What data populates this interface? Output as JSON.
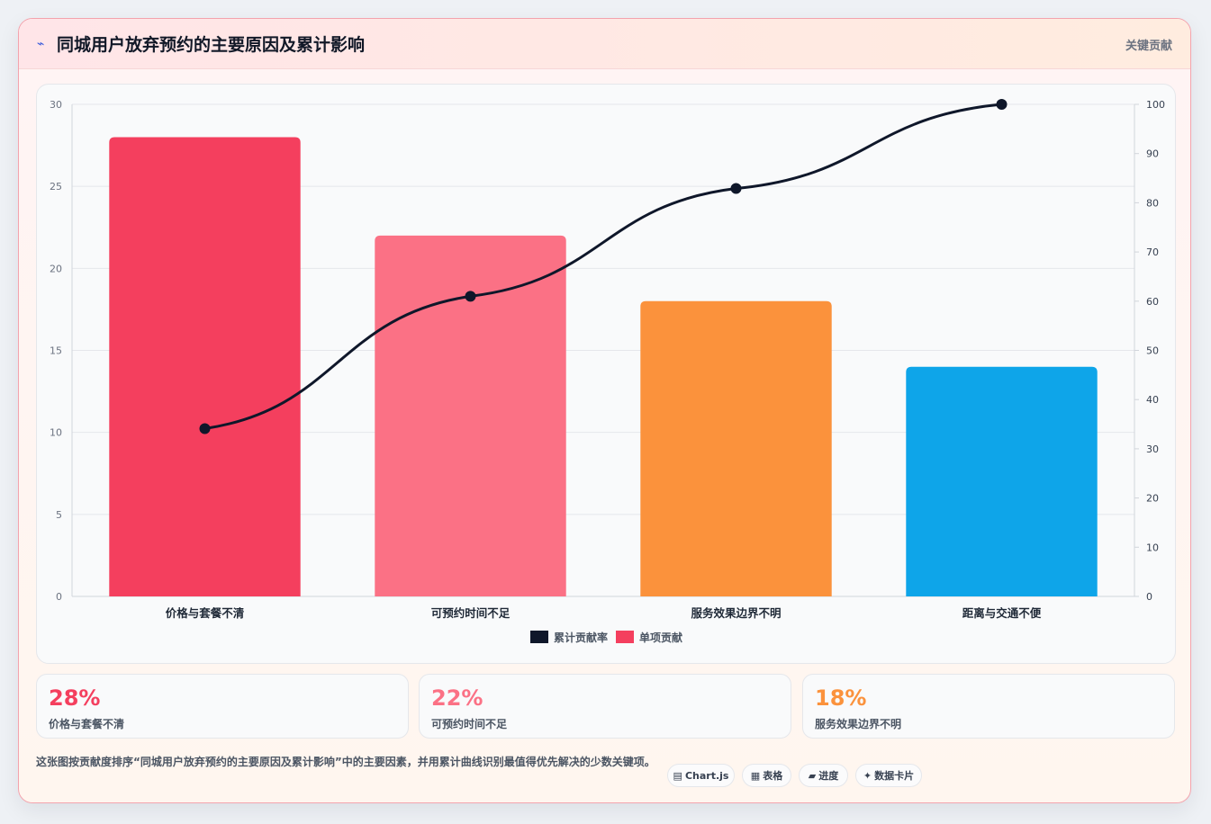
{
  "header": {
    "icon": "chart-wave-icon",
    "icon_glyph": "⌁",
    "title": "同城用户放弃预约的主要原因及累计影响",
    "tag": "关键贡献"
  },
  "chart_data": {
    "type": "bar",
    "categories": [
      "价格与套餐不清",
      "可预约时间不足",
      "服务效果边界不明",
      "距离与交通不便"
    ],
    "series": [
      {
        "name": "单项贡献",
        "type": "bar",
        "values": [
          28,
          22,
          18,
          14
        ],
        "colors": [
          "#f43f5e",
          "#fb7185",
          "#fb923c",
          "#0ea5e9"
        ],
        "axis": "left"
      },
      {
        "name": "累计贡献率",
        "type": "line",
        "values": [
          34.1,
          61,
          82.9,
          100
        ],
        "color": "#0f172a",
        "axis": "right"
      }
    ],
    "ylim": [
      0,
      30
    ],
    "y_ticks": [
      0,
      5,
      10,
      15,
      20,
      25,
      30
    ],
    "y2lim": [
      0,
      100
    ],
    "y2_ticks": [
      0,
      10,
      20,
      30,
      40,
      50,
      60,
      70,
      80,
      90,
      100
    ],
    "grid": true,
    "legend": [
      {
        "label": "累计贡献率",
        "color": "#0f172a"
      },
      {
        "label": "单项贡献",
        "color": "#f43f5e"
      }
    ],
    "legend_position": "bottom"
  },
  "stats": [
    {
      "value": "28%",
      "label": "价格与套餐不清",
      "color": "#f43f5e"
    },
    {
      "value": "22%",
      "label": "可预约时间不足",
      "color": "#fb7185"
    },
    {
      "value": "18%",
      "label": "服务效果边界不明",
      "color": "#fb923c"
    }
  ],
  "footer": {
    "description": "这张图按贡献度排序“同城用户放弃预约的主要原因及累计影响”中的主要因素，并用累计曲线识别最值得优先解决的少数关键项。",
    "chips": [
      {
        "icon": "▤",
        "label": "Chart.js"
      },
      {
        "icon": "▦",
        "label": "表格"
      },
      {
        "icon": "▰",
        "label": "进度"
      },
      {
        "icon": "✦",
        "label": "数据卡片"
      }
    ]
  }
}
